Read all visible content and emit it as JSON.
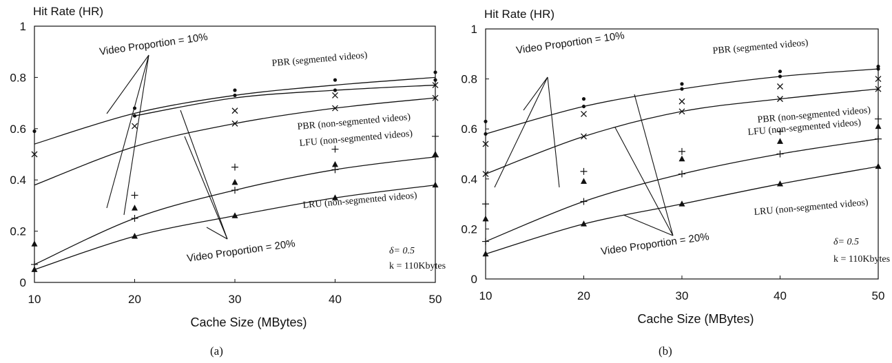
{
  "charts": [
    {
      "caption": "(a)",
      "chart_data": {
        "type": "line",
        "title": "",
        "ylabel": "Hit Rate (HR)",
        "xlabel": "Cache Size (MBytes)",
        "x": [
          10,
          20,
          30,
          40,
          50
        ],
        "xlim": [
          10,
          50
        ],
        "ylim": [
          0,
          1
        ],
        "xticks": [
          "10",
          "20",
          "30",
          "40",
          "50"
        ],
        "yticks": [
          "0",
          "0.2",
          "0.4",
          "0.6",
          "0.8",
          "1"
        ],
        "grid": false,
        "series": [
          {
            "name": "PBR (segmented videos)",
            "proportion": "10%",
            "marker": "dot",
            "curve": [
              0.54,
              0.66,
              0.73,
              0.77,
              0.8
            ],
            "points": [
              0.59,
              0.68,
              0.75,
              0.79,
              0.82
            ]
          },
          {
            "name": "PBR (segmented videos)",
            "proportion": "20%",
            "marker": "dot",
            "curve": [
              null,
              0.65,
              0.72,
              0.75,
              0.77
            ],
            "points": [
              null,
              0.65,
              0.73,
              0.75,
              0.79
            ]
          },
          {
            "name": "PBR (non-segmented videos)",
            "proportion": "10%",
            "marker": "x",
            "curve": [
              0.38,
              0.53,
              0.62,
              0.68,
              0.72
            ],
            "points": [
              0.5,
              0.61,
              0.67,
              0.73,
              0.77
            ]
          },
          {
            "name": "PBR (non-segmented videos)",
            "proportion": "20%",
            "marker": "x",
            "curve": [
              null,
              null,
              null,
              null,
              null
            ],
            "points": [
              null,
              null,
              0.62,
              0.68,
              0.72
            ]
          },
          {
            "name": "LFU (non-segmented videos)",
            "proportion": "10%",
            "marker": "plus",
            "curve": [
              0.07,
              0.25,
              0.36,
              0.44,
              0.49
            ],
            "points": [
              0.07,
              0.34,
              0.45,
              0.52,
              0.57
            ]
          },
          {
            "name": "LFU (non-segmented videos)",
            "proportion": "20%",
            "marker": "plus",
            "curve": [
              null,
              null,
              null,
              null,
              null
            ],
            "points": [
              null,
              0.25,
              0.36,
              0.44,
              0.49
            ]
          },
          {
            "name": "LRU (non-segmented videos)",
            "proportion": "10%",
            "marker": "triangle",
            "curve": [
              0.05,
              0.18,
              0.26,
              0.33,
              0.38
            ],
            "points": [
              0.15,
              0.29,
              0.39,
              0.46,
              0.5
            ]
          },
          {
            "name": "LRU (non-segmented videos)",
            "proportion": "20%",
            "marker": "triangle",
            "curve": [
              null,
              null,
              null,
              null,
              null
            ],
            "points": [
              0.05,
              0.18,
              0.26,
              0.33,
              0.38
            ]
          }
        ],
        "annotations": {
          "top_label": "Video Proportion = 10%",
          "bottom_label": "Video Proportion = 20%",
          "delta": "δ= 0.5",
          "k": "k = 110Kbytes"
        }
      }
    },
    {
      "caption": "(b)",
      "chart_data": {
        "type": "line",
        "title": "",
        "ylabel": "Hit Rate (HR)",
        "xlabel": "Cache Size (MBytes)",
        "x": [
          10,
          20,
          30,
          40,
          50
        ],
        "xlim": [
          10,
          50
        ],
        "ylim": [
          0,
          1
        ],
        "xticks": [
          "10",
          "20",
          "30",
          "40",
          "50"
        ],
        "yticks": [
          "0",
          "0.2",
          "0.4",
          "0.6",
          "0.8",
          "1"
        ],
        "grid": false,
        "series": [
          {
            "name": "PBR (segmented videos)",
            "proportion": "10%",
            "marker": "dot",
            "curve": [
              0.58,
              0.69,
              0.76,
              0.81,
              0.84
            ],
            "points": [
              0.63,
              0.72,
              0.78,
              0.83,
              0.85
            ]
          },
          {
            "name": "PBR (segmented videos)",
            "proportion": "20%",
            "marker": "dot",
            "curve": [
              null,
              null,
              null,
              null,
              null
            ],
            "points": [
              0.58,
              0.69,
              0.76,
              0.81,
              0.84
            ]
          },
          {
            "name": "PBR (non-segmented videos)",
            "proportion": "10%",
            "marker": "x",
            "curve": [
              0.42,
              0.57,
              0.67,
              0.72,
              0.76
            ],
            "points": [
              0.54,
              0.66,
              0.71,
              0.77,
              0.8
            ]
          },
          {
            "name": "PBR (non-segmented videos)",
            "proportion": "20%",
            "marker": "x",
            "curve": [
              null,
              null,
              null,
              null,
              null
            ],
            "points": [
              0.42,
              0.57,
              0.67,
              0.72,
              0.76
            ]
          },
          {
            "name": "LFU (non-segmented videos)",
            "proportion": "10%",
            "marker": "plus",
            "curve": [
              0.15,
              0.31,
              0.42,
              0.5,
              0.56
            ],
            "points": [
              0.3,
              0.43,
              0.51,
              0.59,
              0.64
            ]
          },
          {
            "name": "LFU (non-segmented videos)",
            "proportion": "20%",
            "marker": "plus",
            "curve": [
              null,
              null,
              null,
              null,
              null
            ],
            "points": [
              0.15,
              0.31,
              0.42,
              0.5,
              0.56
            ]
          },
          {
            "name": "LRU (non-segmented videos)",
            "proportion": "10%",
            "marker": "triangle",
            "curve": [
              0.1,
              0.22,
              0.3,
              0.38,
              0.45
            ],
            "points": [
              0.24,
              0.39,
              0.48,
              0.55,
              0.61
            ]
          },
          {
            "name": "LRU (non-segmented videos)",
            "proportion": "20%",
            "marker": "triangle",
            "curve": [
              null,
              null,
              null,
              null,
              null
            ],
            "points": [
              0.1,
              0.22,
              0.3,
              0.38,
              0.45
            ]
          }
        ],
        "annotations": {
          "top_label": "Video Proportion = 10%",
          "bottom_label": "Video Proportion = 20%",
          "delta": "δ= 0.5",
          "k": "k = 110Kbytes"
        }
      }
    }
  ],
  "colors": {
    "ink": "#111111",
    "background": "#ffffff"
  }
}
